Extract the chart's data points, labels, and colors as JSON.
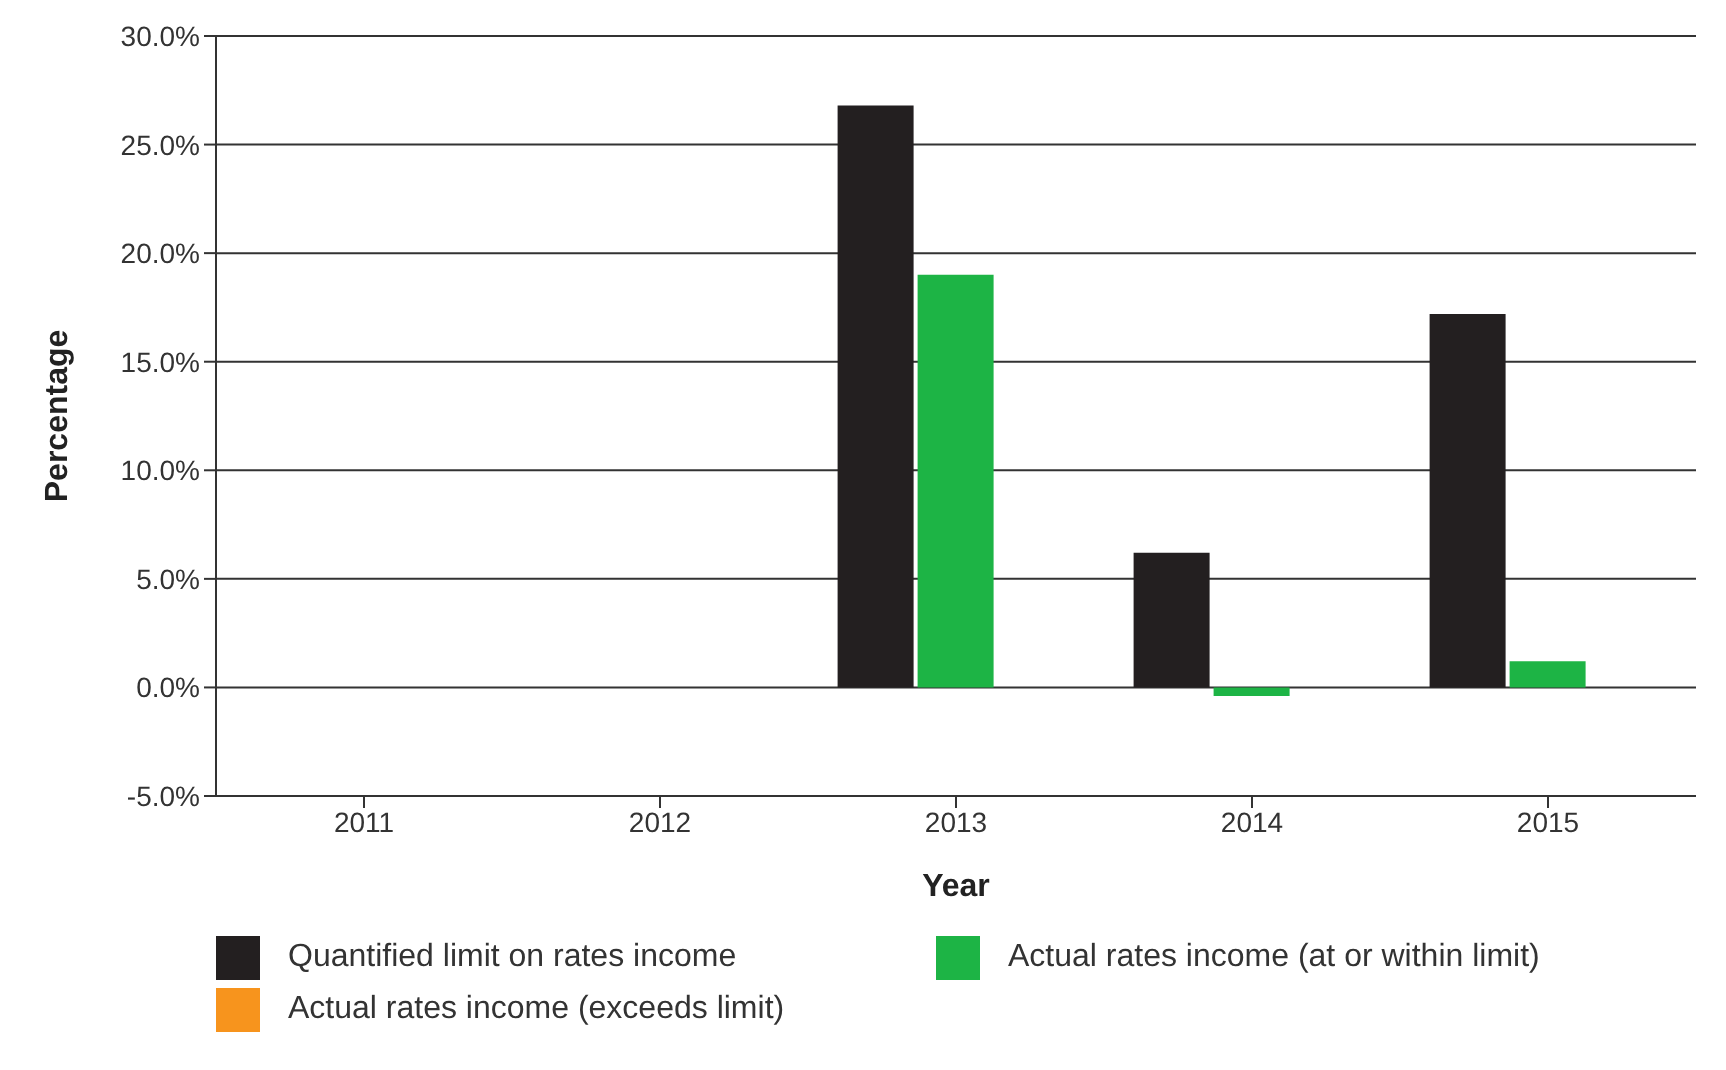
{
  "chart_data": {
    "type": "bar",
    "xlabel": "Year",
    "ylabel": "Percentage",
    "categories": [
      "2011",
      "2012",
      "2013",
      "2014",
      "2015"
    ],
    "series": [
      {
        "name": "Quantified limit on rates income",
        "color": "#231f20",
        "values": [
          null,
          null,
          26.8,
          6.2,
          17.2
        ]
      },
      {
        "name": "Actual rates income (at or within limit)",
        "color": "#1db445",
        "values": [
          null,
          null,
          19.0,
          -0.4,
          1.2
        ]
      },
      {
        "name": "Actual rates income (exceeds limit)",
        "color": "#f7941d",
        "values": [
          null,
          null,
          null,
          null,
          null
        ]
      }
    ],
    "ylim": [
      -5,
      30
    ],
    "yticks": [
      {
        "value": -5,
        "label": "-5.0%"
      },
      {
        "value": 0,
        "label": "0.0%"
      },
      {
        "value": 5,
        "label": "5.0%"
      },
      {
        "value": 10,
        "label": "10.0%"
      },
      {
        "value": 15,
        "label": "15.0%"
      },
      {
        "value": 20,
        "label": "20.0%"
      },
      {
        "value": 25,
        "label": "25.0%"
      },
      {
        "value": 30,
        "label": "30.0%"
      }
    ],
    "grid": "y",
    "legend": "bottom"
  }
}
